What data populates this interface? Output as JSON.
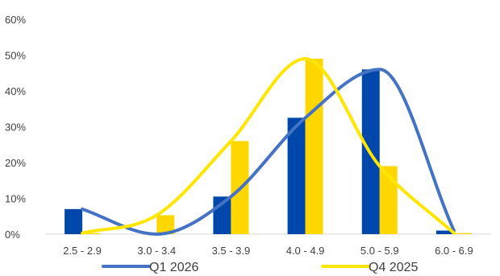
{
  "chart_data": {
    "type": "bar",
    "categories": [
      "2.5 - 2.9",
      "3.0 - 3.4",
      "3.5 - 3.9",
      "4.0 - 4.9",
      "5.0 - 5.9",
      "6.0 - 6.9"
    ],
    "series": [
      {
        "name": "Q1 2026",
        "values": [
          7,
          0,
          10.5,
          32.5,
          46,
          1
        ],
        "bar_color": "#0047AB",
        "line_color": "#4472C4"
      },
      {
        "name": "Q4 2025",
        "values": [
          0.3,
          5.3,
          26,
          49,
          19,
          0.3
        ],
        "bar_color": "#FFD700",
        "line_color": "#FFE600"
      }
    ],
    "ylim": [
      0,
      60
    ],
    "yticks": [
      "0%",
      "10%",
      "20%",
      "30%",
      "40%",
      "50%",
      "60%"
    ],
    "title": "",
    "xlabel": "",
    "ylabel": "",
    "grid": false,
    "legend_position": "bottom",
    "overlay": "smoothed line per series"
  }
}
